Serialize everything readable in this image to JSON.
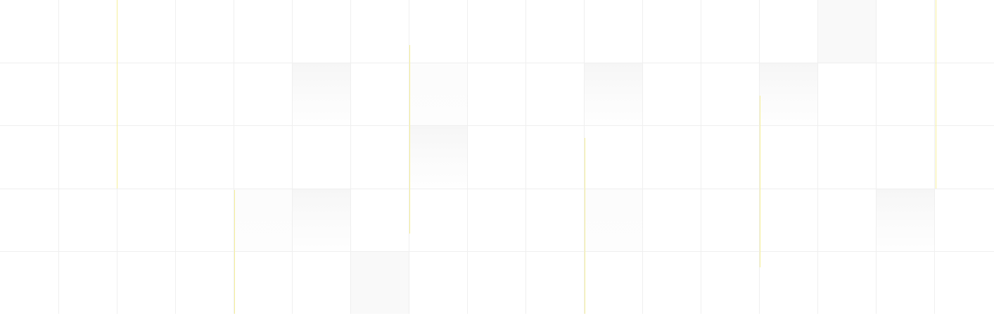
{
  "canvas": {
    "background": "#ffffff",
    "grid_line_color": "#efefef",
    "accent_line_color": "#f6ef9a",
    "shade_color": "#f9f9f9",
    "columns": 17,
    "rows": 5
  }
}
